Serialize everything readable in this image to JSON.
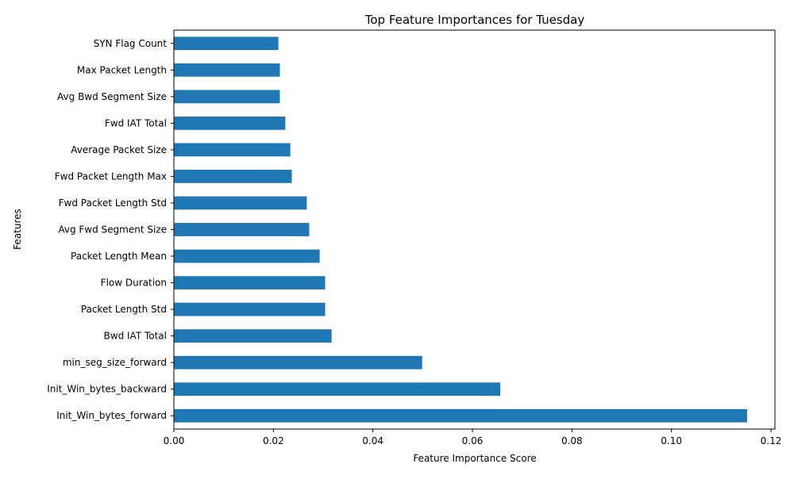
{
  "chart_data": {
    "type": "bar",
    "orientation": "horizontal",
    "title": "Top Feature Importances for Tuesday",
    "xlabel": "Feature Importance Score",
    "ylabel": "Features",
    "xlim": [
      0,
      0.1208
    ],
    "xticks": [
      0.0,
      0.02,
      0.04,
      0.06,
      0.08,
      0.1,
      0.12
    ],
    "xtick_labels": [
      "0.00",
      "0.02",
      "0.04",
      "0.06",
      "0.08",
      "0.10",
      "0.12"
    ],
    "grid": false,
    "legend": "none",
    "bar_color": "#1f77b4",
    "categories": [
      "Init_Win_bytes_forward",
      "Init_Win_bytes_backward",
      "min_seg_size_forward",
      "Bwd IAT Total",
      "Packet Length Std",
      "Flow Duration",
      "Packet Length Mean",
      "Avg Fwd Segment Size",
      "Fwd Packet Length Std",
      "Fwd Packet Length Max",
      "Average Packet Size",
      "Fwd IAT Total",
      "Avg Bwd Segment Size",
      "Max Packet Length",
      "SYN Flag Count"
    ],
    "values": [
      0.1152,
      0.0656,
      0.0499,
      0.0317,
      0.0304,
      0.0304,
      0.0293,
      0.0272,
      0.0267,
      0.0237,
      0.0234,
      0.0224,
      0.0213,
      0.0213,
      0.021
    ]
  }
}
